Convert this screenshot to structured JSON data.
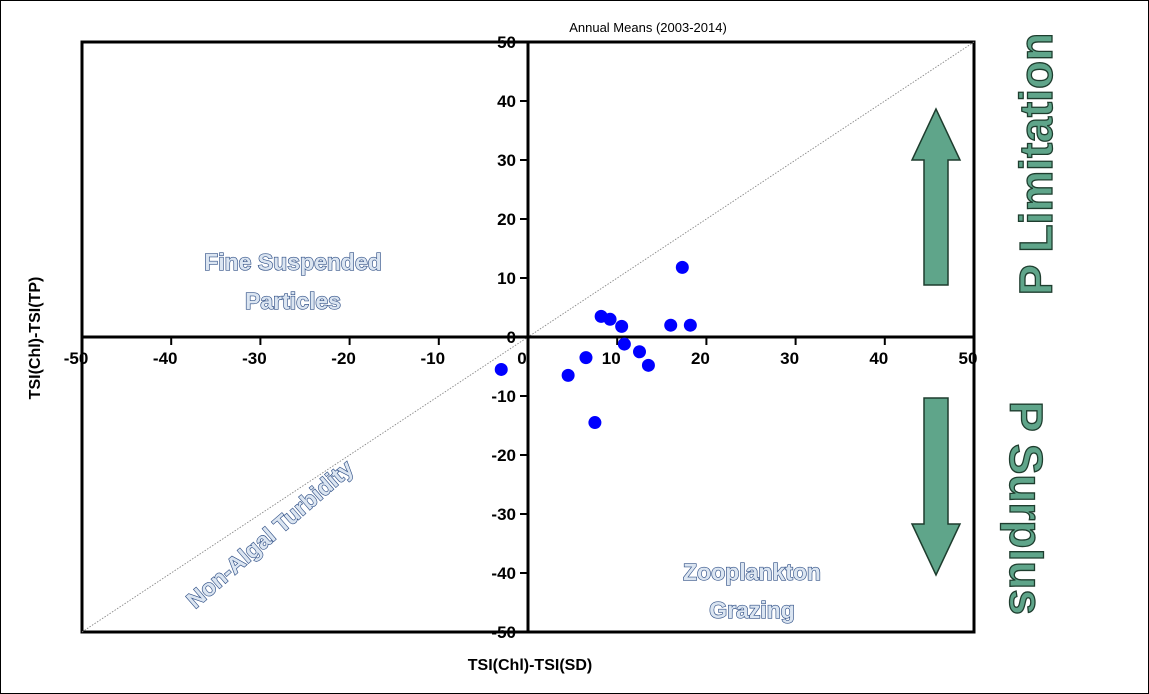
{
  "chart_data": {
    "type": "scatter",
    "title": "Annual Means (2003-2014)",
    "xlabel": "TSI(Chl)-TSI(SD)",
    "ylabel": "TSI(Chl)-TSI(TP)",
    "xlim": [
      -50,
      50
    ],
    "ylim": [
      -50,
      50
    ],
    "xticks": [
      -50,
      -40,
      -30,
      -20,
      -10,
      0,
      10,
      20,
      30,
      40,
      50
    ],
    "yticks": [
      -50,
      -40,
      -30,
      -20,
      -10,
      0,
      10,
      20,
      30,
      40,
      50
    ],
    "grid": false,
    "reference_line": "1:1 diagonal",
    "points": [
      {
        "x": -3,
        "y": -5.5
      },
      {
        "x": 4.5,
        "y": -6.5
      },
      {
        "x": 6.5,
        "y": -3.5
      },
      {
        "x": 7.5,
        "y": -14.5
      },
      {
        "x": 8.2,
        "y": 3.5
      },
      {
        "x": 9.2,
        "y": 3
      },
      {
        "x": 10.5,
        "y": 1.8
      },
      {
        "x": 10.8,
        "y": -1.2
      },
      {
        "x": 12.5,
        "y": -2.5
      },
      {
        "x": 13.5,
        "y": -4.8
      },
      {
        "x": 16,
        "y": 2
      },
      {
        "x": 17.3,
        "y": 11.8
      },
      {
        "x": 18.2,
        "y": 2
      }
    ],
    "point_color": "#0000ff",
    "annotations": {
      "fine_suspended": [
        "Fine Suspended",
        "Particles"
      ],
      "zooplankton": [
        "Zooplankton",
        "Grazing"
      ],
      "non_algal": "Non-Algal Turbidity",
      "p_limitation": "P Limitation",
      "p_surplus": "P Surplus"
    },
    "arrow_color": "#5fa58a"
  }
}
